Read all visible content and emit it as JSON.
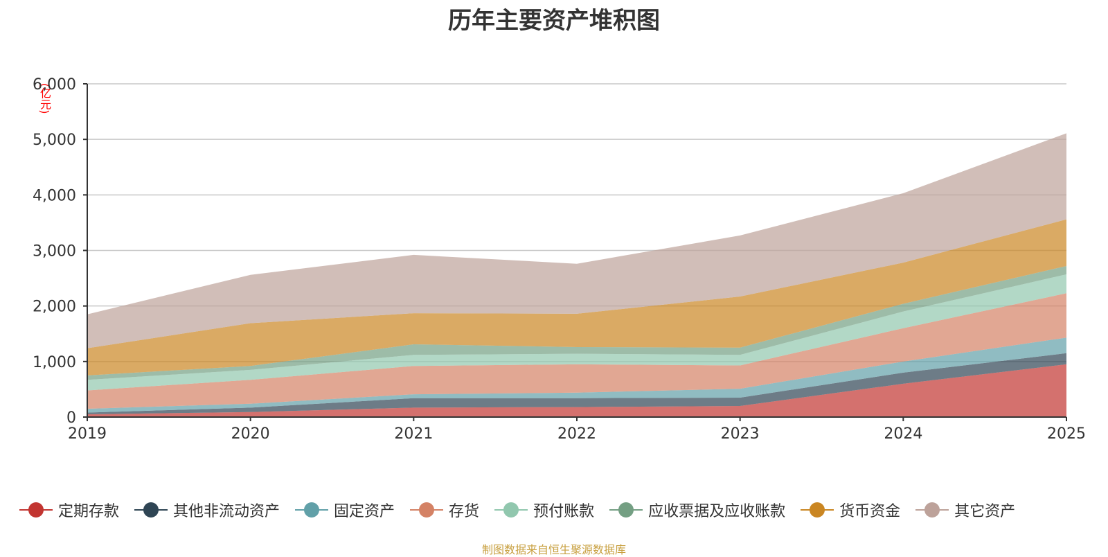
{
  "chart_data": {
    "type": "area",
    "stacked": true,
    "title": "历年主要资产堆积图",
    "unit_label": "(亿元)",
    "ylim": [
      0,
      6000
    ],
    "y_ticks": [
      0,
      1000,
      2000,
      3000,
      4000,
      5000,
      6000
    ],
    "y_tick_labels": [
      "0",
      "1,000",
      "2,000",
      "3,000",
      "4,000",
      "5,000",
      "6,000"
    ],
    "categories": [
      "2019",
      "2020",
      "2021",
      "2022",
      "2023",
      "2024",
      "2025"
    ],
    "series": [
      {
        "name": "定期存款",
        "color": "#c23531",
        "values": [
          50,
          90,
          170,
          180,
          200,
          600,
          950
        ]
      },
      {
        "name": "其他非流动资产",
        "color": "#2f4554",
        "values": [
          30,
          80,
          170,
          160,
          150,
          200,
          200
        ]
      },
      {
        "name": "固定资产",
        "color": "#61a0a8",
        "values": [
          70,
          70,
          70,
          100,
          160,
          200,
          280
        ]
      },
      {
        "name": "存货",
        "color": "#d48265",
        "values": [
          330,
          430,
          510,
          510,
          420,
          600,
          800
        ]
      },
      {
        "name": "预付账款",
        "color": "#91c7ae",
        "values": [
          190,
          180,
          200,
          190,
          190,
          300,
          340
        ]
      },
      {
        "name": "应收票据及应收账款",
        "color": "#749f83",
        "values": [
          80,
          70,
          190,
          120,
          130,
          140,
          150
        ]
      },
      {
        "name": "货币资金",
        "color": "#ca8622",
        "values": [
          490,
          770,
          560,
          600,
          920,
          740,
          840
        ]
      },
      {
        "name": "其它资产",
        "color": "#bda29a",
        "values": [
          610,
          870,
          1050,
          900,
          1100,
          1250,
          1550
        ]
      }
    ]
  },
  "source_note": "制图数据来自恒生聚源数据库"
}
